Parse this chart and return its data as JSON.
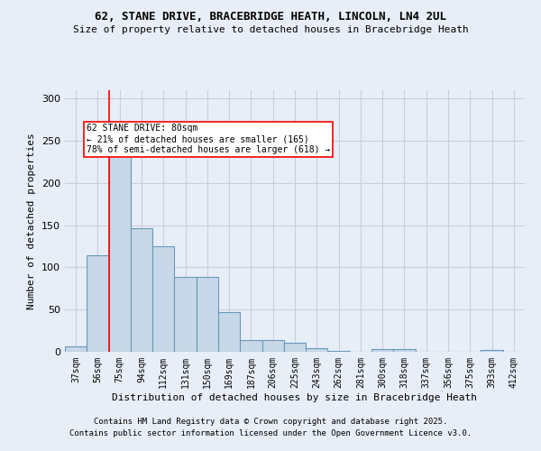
{
  "title1": "62, STANE DRIVE, BRACEBRIDGE HEATH, LINCOLN, LN4 2UL",
  "title2": "Size of property relative to detached houses in Bracebridge Heath",
  "xlabel": "Distribution of detached houses by size in Bracebridge Heath",
  "ylabel": "Number of detached properties",
  "categories": [
    "37sqm",
    "56sqm",
    "75sqm",
    "94sqm",
    "112sqm",
    "131sqm",
    "150sqm",
    "169sqm",
    "187sqm",
    "206sqm",
    "225sqm",
    "243sqm",
    "262sqm",
    "281sqm",
    "300sqm",
    "318sqm",
    "337sqm",
    "356sqm",
    "375sqm",
    "393sqm",
    "412sqm"
  ],
  "values": [
    6,
    114,
    244,
    146,
    125,
    89,
    89,
    47,
    14,
    14,
    11,
    4,
    1,
    0,
    3,
    3,
    0,
    0,
    0,
    2,
    0
  ],
  "bar_color": "#c8d8e8",
  "bar_edge_color": "#6699bb",
  "grid_color": "#ccccdd",
  "bg_color": "#e8eef8",
  "red_line_x": 1.5,
  "annotation_title": "62 STANE DRIVE: 80sqm",
  "annotation_line1": "← 21% of detached houses are smaller (165)",
  "annotation_line2": "78% of semi-detached houses are larger (618) →",
  "footer1": "Contains HM Land Registry data © Crown copyright and database right 2025.",
  "footer2": "Contains public sector information licensed under the Open Government Licence v3.0.",
  "ylim": [
    0,
    310
  ],
  "yticks": [
    0,
    50,
    100,
    150,
    200,
    250,
    300
  ]
}
